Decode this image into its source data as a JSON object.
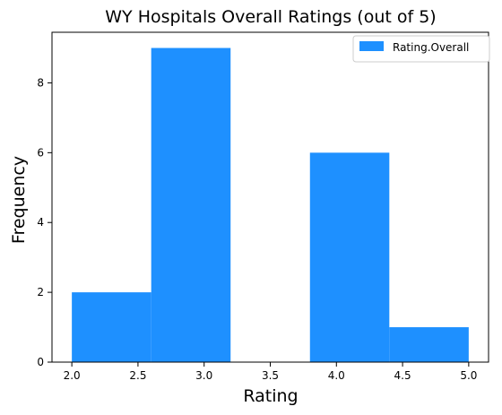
{
  "chart_data": {
    "type": "bar",
    "title": "WY Hospitals Overall Ratings (out of 5)",
    "xlabel": "Rating",
    "ylabel": "Frequency",
    "legend": {
      "placement": "top-right",
      "entries": [
        "Rating.Overall"
      ]
    },
    "bins": [
      {
        "x0": 2.0,
        "x1": 2.6,
        "value": 2
      },
      {
        "x0": 2.6,
        "x1": 3.2,
        "value": 9
      },
      {
        "x0": 3.2,
        "x1": 3.8,
        "value": 0
      },
      {
        "x0": 3.8,
        "x1": 4.4,
        "value": 6
      },
      {
        "x0": 4.4,
        "x1": 5.0,
        "value": 1
      }
    ],
    "series": [
      {
        "name": "Rating.Overall",
        "color": "#1e90ff"
      }
    ],
    "xlim": [
      1.85,
      5.15
    ],
    "ylim": [
      0,
      9.45
    ],
    "xticks": [
      2.0,
      2.5,
      3.0,
      3.5,
      4.0,
      4.5,
      5.0
    ],
    "xtick_labels": [
      "2.0",
      "2.5",
      "3.0",
      "3.5",
      "4.0",
      "4.5",
      "5.0"
    ],
    "yticks": [
      0,
      2,
      4,
      6,
      8
    ],
    "ytick_labels": [
      "0",
      "2",
      "4",
      "6",
      "8"
    ],
    "grid": false
  }
}
